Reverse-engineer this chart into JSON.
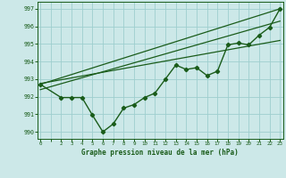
{
  "title": "Graphe pression niveau de la mer (hPa)",
  "background_color": "#cce8e8",
  "grid_color": "#9ecece",
  "line_color": "#1a5c1a",
  "x_ticks": [
    0,
    2,
    3,
    4,
    5,
    6,
    7,
    8,
    9,
    10,
    11,
    12,
    13,
    14,
    15,
    16,
    17,
    18,
    19,
    20,
    21,
    22,
    23
  ],
  "xlim": [
    -0.3,
    23.3
  ],
  "ylim": [
    989.6,
    997.4
  ],
  "y_ticks": [
    990,
    991,
    992,
    993,
    994,
    995,
    996,
    997
  ],
  "main_data": [
    [
      0,
      992.7
    ],
    [
      2,
      991.95
    ],
    [
      3,
      991.95
    ],
    [
      4,
      991.95
    ],
    [
      5,
      990.95
    ],
    [
      6,
      990.0
    ],
    [
      7,
      990.45
    ],
    [
      8,
      991.35
    ],
    [
      9,
      991.55
    ],
    [
      10,
      991.95
    ],
    [
      11,
      992.2
    ],
    [
      12,
      993.0
    ],
    [
      13,
      993.8
    ],
    [
      14,
      993.55
    ],
    [
      15,
      993.65
    ],
    [
      16,
      993.2
    ],
    [
      17,
      993.45
    ],
    [
      18,
      994.95
    ],
    [
      19,
      995.05
    ],
    [
      20,
      994.95
    ],
    [
      21,
      995.5
    ],
    [
      22,
      995.95
    ],
    [
      23,
      997.0
    ]
  ],
  "reg_line1": [
    [
      0,
      992.7
    ],
    [
      23,
      997.0
    ]
  ],
  "reg_line2": [
    [
      0,
      992.4
    ],
    [
      23,
      996.3
    ]
  ],
  "reg_line3": [
    [
      0,
      992.75
    ],
    [
      23,
      995.2
    ]
  ]
}
